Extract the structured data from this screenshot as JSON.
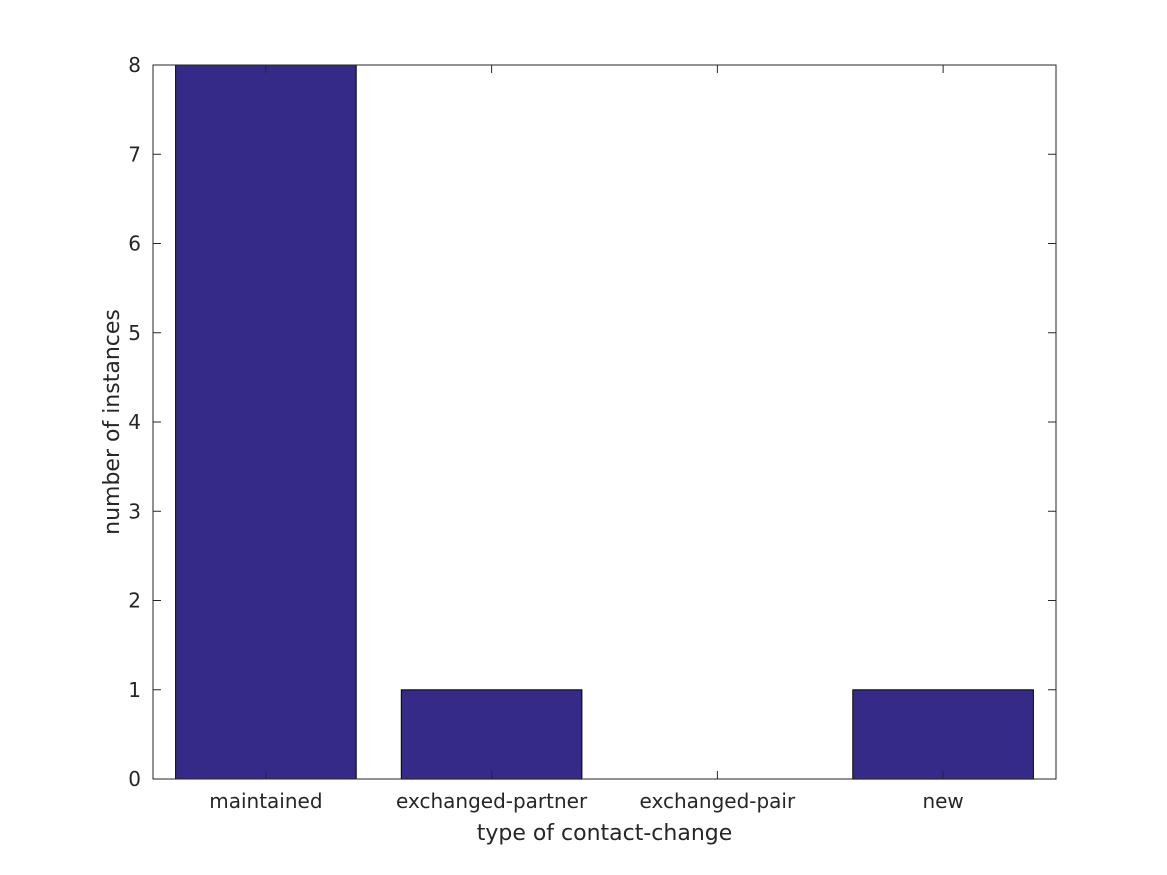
{
  "chart_data": {
    "type": "bar",
    "title": "",
    "xlabel": "type of contact-change",
    "ylabel": "number of instances",
    "categories": [
      "maintained",
      "exchanged-partner",
      "exchanged-pair",
      "new"
    ],
    "values": [
      8,
      1,
      0,
      1
    ],
    "ylim": [
      0,
      8
    ],
    "yticks": [
      "0",
      "1",
      "2",
      "3",
      "4",
      "5",
      "6",
      "7",
      "8"
    ],
    "grid": false,
    "bar_color": "#352a87",
    "legend": "none"
  }
}
